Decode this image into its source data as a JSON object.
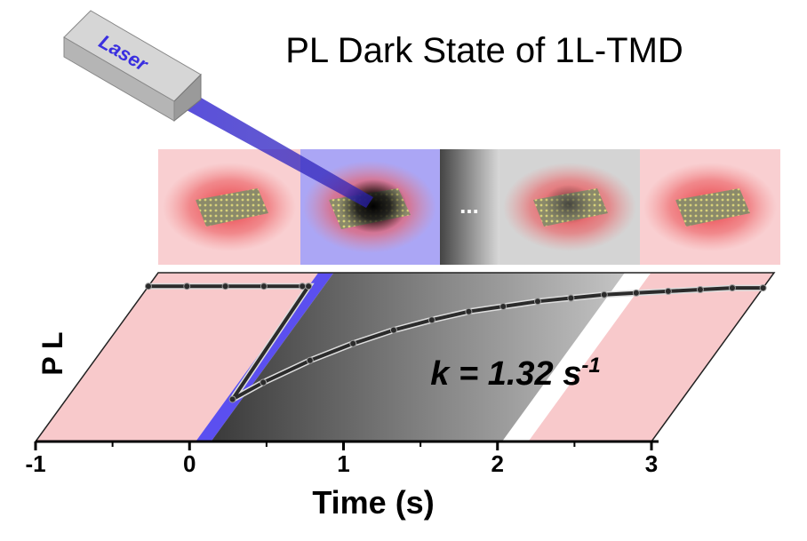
{
  "chart_data": {
    "type": "line",
    "title": "PL Dark State of 1L-TMD",
    "laser_label": "Laser",
    "panel_text": "...",
    "xlabel": "Time (s)",
    "ylabel": "P L",
    "annotation": {
      "main": "k = 1.32 s",
      "sup": "-1"
    },
    "xlim": [
      -1,
      3
    ],
    "xticks": [
      -1,
      0,
      1,
      2,
      3
    ],
    "xminor_ticks": [
      -0.5,
      0.5,
      1.5,
      2.5
    ],
    "ylim": [
      0,
      1
    ],
    "shaded_regions": [
      {
        "from": -1,
        "to": 0.04,
        "color": "#f8c9cb"
      },
      {
        "from": 0.04,
        "to": 0.14,
        "color": "#5b4ff0"
      },
      {
        "from": 0.14,
        "to": 2.03,
        "color": "#3a3a3a",
        "color_to": "#c4c4c4"
      },
      {
        "from": 2.2,
        "to": 3,
        "color": "#f8c9cb"
      }
    ],
    "series": [
      {
        "name": "PL",
        "color": "#2b2b2b",
        "x": [
          -1,
          -0.75,
          -0.5,
          -0.25,
          0,
          0.04,
          0.08,
          0.2,
          0.4,
          0.6,
          0.8,
          1.0,
          1.2,
          1.4,
          1.6,
          1.8,
          2.0,
          2.2,
          2.4,
          2.6,
          2.8,
          3.0
        ],
        "values": [
          0.92,
          0.92,
          0.92,
          0.92,
          0.92,
          0.92,
          0.25,
          0.35,
          0.48,
          0.58,
          0.66,
          0.72,
          0.77,
          0.8,
          0.83,
          0.85,
          0.87,
          0.88,
          0.89,
          0.9,
          0.91,
          0.91
        ]
      }
    ]
  }
}
